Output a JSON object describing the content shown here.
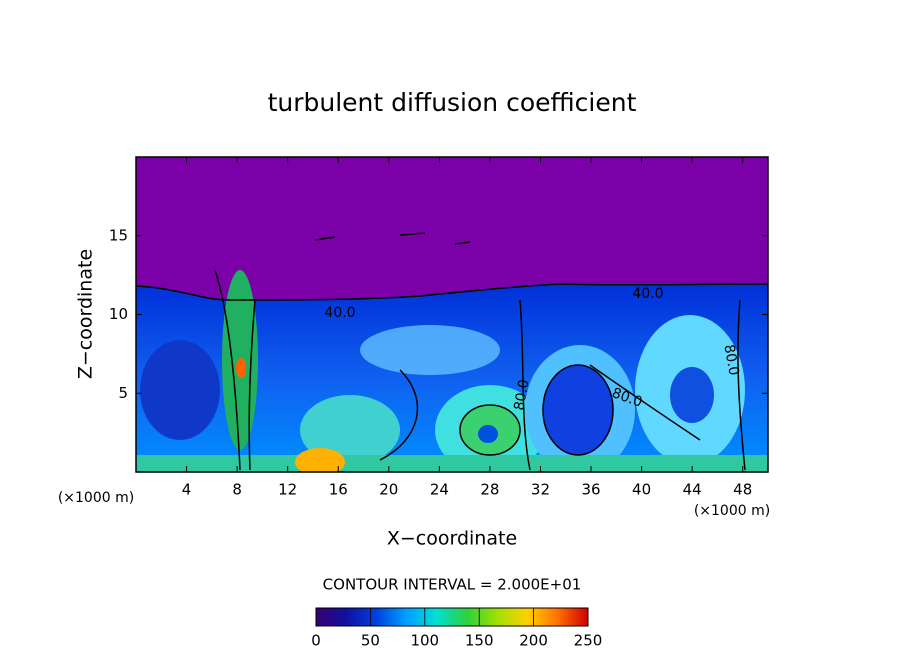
{
  "chart_data": {
    "type": "contour",
    "title": "turbulent diffusion coefficient",
    "x_label": "X−coordinate",
    "y_label": "Z−coordinate",
    "x_unit_label": "(×1000 m)",
    "y_unit_label": "(×1000 m)",
    "xlim": [
      0,
      50
    ],
    "ylim": [
      0,
      20
    ],
    "xticks": [
      4,
      8,
      12,
      16,
      20,
      24,
      28,
      32,
      36,
      40,
      44,
      48
    ],
    "yticks": [
      5,
      10,
      15
    ],
    "contour_interval_text": "CONTOUR INTERVAL = 2.000E+01",
    "contour_labels": [
      {
        "value": 40,
        "label": "40.0"
      },
      {
        "value": 40,
        "label": "40.0"
      },
      {
        "value": 80,
        "label": "80.0"
      },
      {
        "value": 80,
        "label": "80.0"
      },
      {
        "value": 80,
        "label": "80.0"
      }
    ],
    "colorbar": {
      "lim": [
        0,
        250
      ],
      "ticks": [
        0,
        50,
        100,
        150,
        200,
        250
      ],
      "colors": [
        "#3a0070",
        "#1010a0",
        "#0040e0",
        "#00a0ff",
        "#00e0d0",
        "#30d040",
        "#a0e000",
        "#ffd000",
        "#ff7000",
        "#d00000"
      ]
    }
  }
}
